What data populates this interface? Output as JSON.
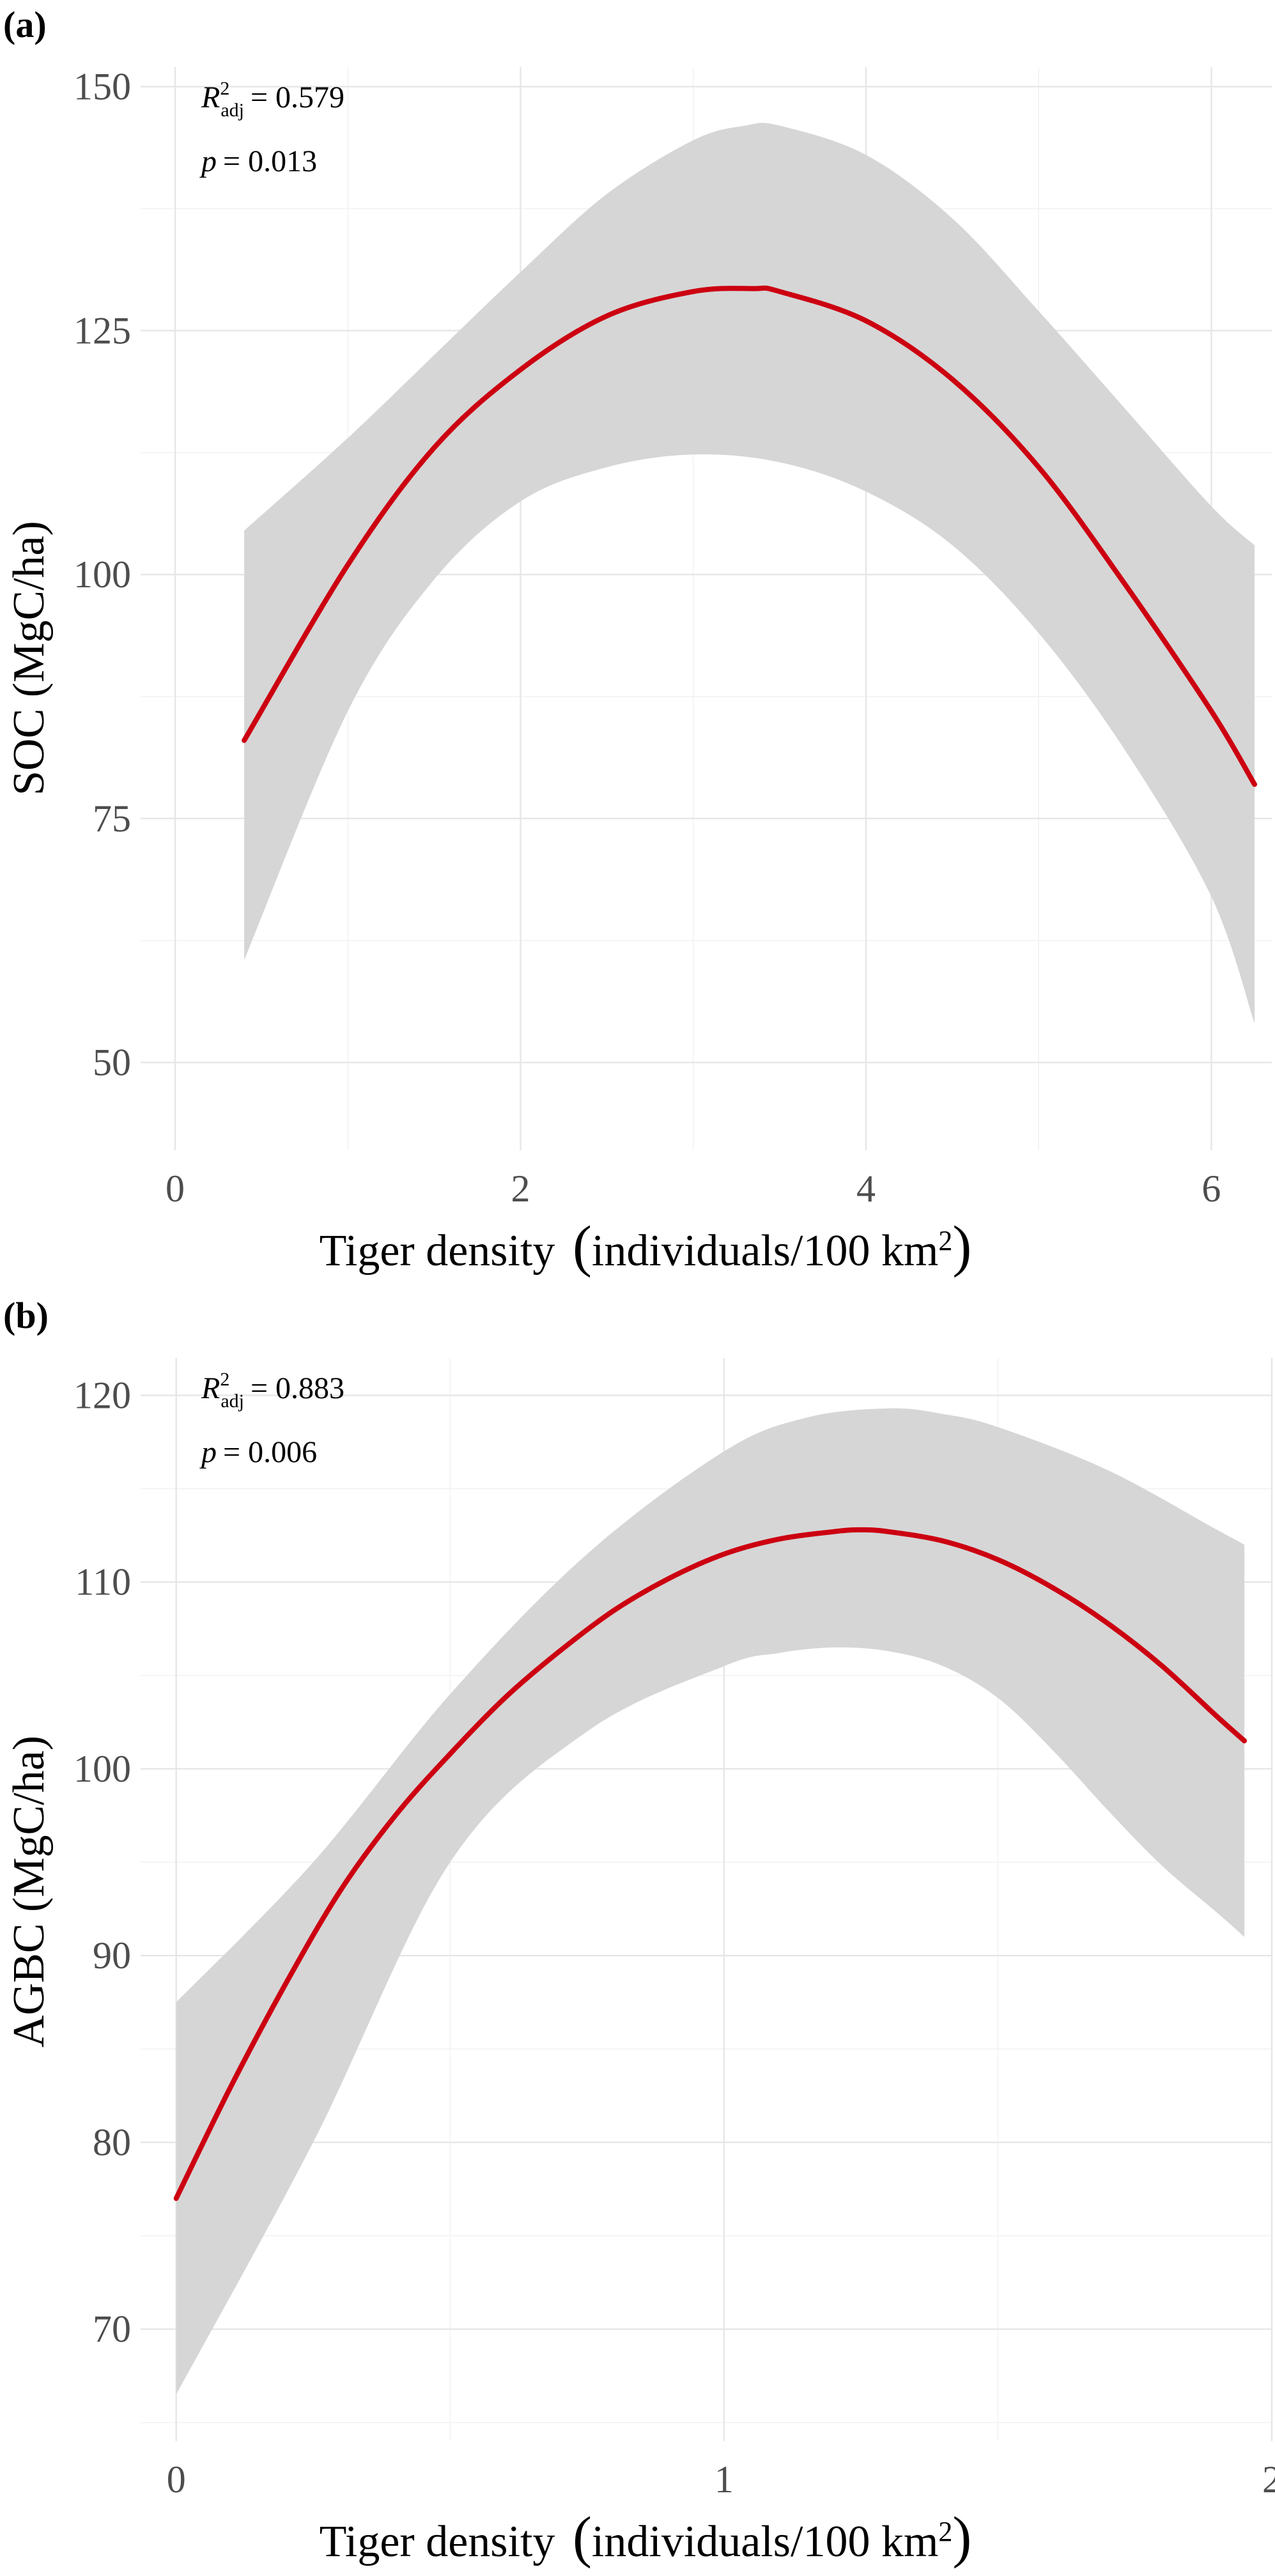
{
  "chart_data": [
    {
      "type": "line",
      "panel_label": "(a)",
      "xlabel_main": "Tiger density",
      "xlabel_units": "individuals/100 km",
      "xlabel_superscript": "2",
      "ylabel": "SOC (MgC/ha)",
      "xlim": [
        -0.2,
        6.35
      ],
      "ylim": [
        41,
        152
      ],
      "x_major_ticks": [
        0,
        2,
        4,
        6
      ],
      "x_minor_ticks": [
        1,
        3,
        5
      ],
      "y_major_ticks": [
        50,
        75,
        100,
        125,
        150
      ],
      "y_minor_ticks": [
        62.5,
        87.5,
        112.5,
        137.5
      ],
      "x_tick_labels": [
        "0",
        "2",
        "4",
        "6"
      ],
      "y_tick_labels": [
        "50",
        "75",
        "100",
        "125",
        "150"
      ],
      "annotation": {
        "r2_symbol": "R",
        "r2_sup": "2",
        "r2_sub": "adj",
        "r2_value": "= 0.579",
        "p_symbol": "p",
        "p_value": "= 0.013"
      },
      "grid": true,
      "fit_color": "#cc0011",
      "ribbon_color": "#d6d6d6",
      "fit_curve": {
        "x": [
          0.4,
          1.0,
          1.5,
          2.0,
          2.5,
          3.0,
          3.35,
          3.5,
          4.0,
          4.5,
          5.0,
          5.5,
          6.0,
          6.25
        ],
        "y": [
          83.0,
          101.0,
          113.0,
          121.0,
          126.5,
          129.0,
          129.3,
          129.0,
          126.0,
          120.0,
          111.0,
          99.0,
          86.0,
          78.5
        ]
      },
      "ci_upper": {
        "x": [
          0.4,
          1.0,
          1.5,
          2.0,
          2.5,
          3.0,
          3.3,
          3.5,
          4.0,
          4.5,
          5.0,
          5.5,
          6.0,
          6.25
        ],
        "y": [
          104.5,
          114.0,
          122.5,
          131.0,
          139.0,
          144.5,
          146.0,
          146.0,
          143.0,
          136.5,
          127.0,
          117.0,
          107.0,
          103.0
        ]
      },
      "ci_lower": {
        "x": [
          0.4,
          1.0,
          1.5,
          2.0,
          2.5,
          3.0,
          3.5,
          4.0,
          4.5,
          5.0,
          5.5,
          6.0,
          6.25
        ],
        "y": [
          60.5,
          86.0,
          99.5,
          107.5,
          111.0,
          112.3,
          111.5,
          108.5,
          103.0,
          94.0,
          82.0,
          67.0,
          54.0
        ]
      }
    },
    {
      "type": "line",
      "panel_label": "(b)",
      "xlabel_main": "Tiger density",
      "xlabel_units": "individuals/100 km",
      "xlabel_superscript": "2",
      "ylabel": "AGBC (MgC/ha)",
      "xlim": [
        -0.065,
        2.0
      ],
      "ylim": [
        64,
        122
      ],
      "x_major_ticks": [
        0,
        1,
        2
      ],
      "x_minor_ticks": [
        0.5,
        1.5
      ],
      "y_major_ticks": [
        70,
        80,
        90,
        100,
        110,
        120
      ],
      "y_minor_ticks": [
        65,
        75,
        85,
        95,
        105,
        115
      ],
      "x_tick_labels": [
        "0",
        "1",
        "2"
      ],
      "y_tick_labels": [
        "70",
        "80",
        "90",
        "100",
        "110",
        "120"
      ],
      "annotation": {
        "r2_symbol": "R",
        "r2_sup": "2",
        "r2_sub": "adj",
        "r2_value": "= 0.883",
        "p_symbol": "p",
        "p_value": "= 0.006"
      },
      "grid": true,
      "fit_color": "#cc0011",
      "ribbon_color": "#d6d6d6",
      "fit_curve": {
        "x": [
          0.0,
          0.1,
          0.2,
          0.3,
          0.4,
          0.5,
          0.6,
          0.7,
          0.8,
          0.9,
          1.0,
          1.1,
          1.2,
          1.25,
          1.3,
          1.4,
          1.5,
          1.6,
          1.7,
          1.8,
          1.9,
          1.95
        ],
        "y": [
          77.0,
          83.0,
          88.5,
          93.5,
          97.5,
          100.8,
          103.8,
          106.3,
          108.5,
          110.2,
          111.5,
          112.3,
          112.7,
          112.8,
          112.7,
          112.2,
          111.2,
          109.7,
          107.8,
          105.5,
          102.8,
          101.5
        ]
      },
      "ci_upper": {
        "x": [
          0.0,
          0.25,
          0.5,
          0.75,
          1.0,
          1.15,
          1.3,
          1.4,
          1.5,
          1.7,
          1.9,
          1.95
        ],
        "y": [
          87.5,
          95.0,
          104.0,
          111.5,
          117.0,
          118.8,
          119.3,
          119.0,
          118.3,
          116.0,
          112.8,
          112.0
        ]
      },
      "ci_lower": {
        "x": [
          0.0,
          0.25,
          0.5,
          0.75,
          1.0,
          1.1,
          1.2,
          1.3,
          1.4,
          1.5,
          1.6,
          1.7,
          1.8,
          1.9,
          1.95
        ],
        "y": [
          66.5,
          80.0,
          95.0,
          102.0,
          105.5,
          106.2,
          106.5,
          106.3,
          105.5,
          103.8,
          101.0,
          97.8,
          94.8,
          92.3,
          91.0
        ]
      }
    }
  ]
}
